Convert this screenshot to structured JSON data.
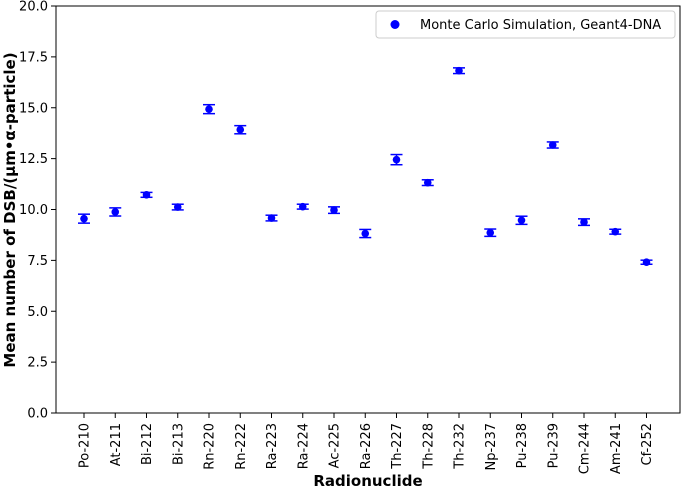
{
  "chart_data": {
    "type": "scatter",
    "title": "",
    "xlabel": "Radionuclide",
    "ylabel": "Mean number of DSB/(μm•α-particle)",
    "ylim": [
      0,
      20
    ],
    "yticks": [
      "0.0",
      "2.5",
      "5.0",
      "7.5",
      "10.0",
      "12.5",
      "15.0",
      "17.5",
      "20.0"
    ],
    "grid": false,
    "legend_position": "top-right",
    "categories": [
      "Po-210",
      "At-211",
      "Bi-212",
      "Bi-213",
      "Rn-220",
      "Rn-222",
      "Ra-223",
      "Ra-224",
      "Ac-225",
      "Ra-226",
      "Th-227",
      "Th-228",
      "Th-232",
      "Np-237",
      "Pu-238",
      "Pu-239",
      "Cm-244",
      "Am-241",
      "Cf-252"
    ],
    "series": [
      {
        "name": "Monte Carlo Simulation, Geant4-DNA",
        "color": "#0000ff",
        "values": [
          9.55,
          9.88,
          10.72,
          10.12,
          14.93,
          13.92,
          9.58,
          10.14,
          9.97,
          8.82,
          12.45,
          11.32,
          16.82,
          8.86,
          9.47,
          13.17,
          9.38,
          8.91,
          7.41
        ],
        "errors": [
          0.22,
          0.2,
          0.12,
          0.14,
          0.22,
          0.2,
          0.14,
          0.12,
          0.16,
          0.2,
          0.25,
          0.14,
          0.14,
          0.18,
          0.2,
          0.15,
          0.16,
          0.12,
          0.1
        ]
      }
    ]
  }
}
